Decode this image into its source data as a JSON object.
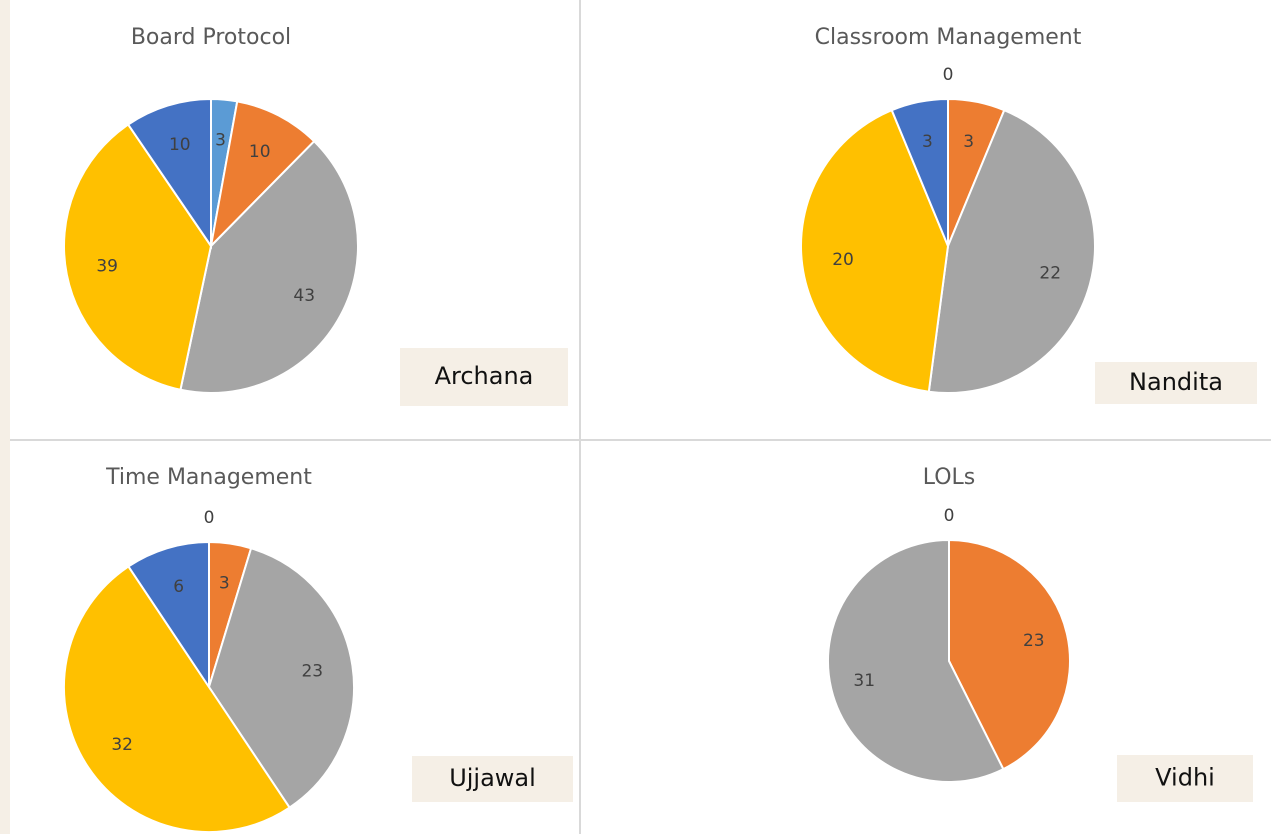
{
  "chart_data": [
    {
      "type": "pie",
      "title": "Board Protocol",
      "annotation": "Archana",
      "values": [
        3,
        10,
        43,
        39,
        10
      ],
      "colors": [
        "#5b9bd5",
        "#ed7d31",
        "#a5a5a5",
        "#ffc000",
        "#4472c4"
      ]
    },
    {
      "type": "pie",
      "title": "Classroom Management",
      "annotation": "Nandita",
      "values": [
        0,
        3,
        22,
        20,
        3
      ],
      "colors": [
        "#5b9bd5",
        "#ed7d31",
        "#a5a5a5",
        "#ffc000",
        "#4472c4"
      ]
    },
    {
      "type": "pie",
      "title": "Time Management",
      "annotation": "Ujjawal",
      "values": [
        0,
        3,
        23,
        32,
        6
      ],
      "colors": [
        "#5b9bd5",
        "#ed7d31",
        "#a5a5a5",
        "#ffc000",
        "#4472c4"
      ]
    },
    {
      "type": "pie",
      "title": "LOLs",
      "annotation": "Vidhi",
      "values": [
        0,
        23,
        31
      ],
      "colors": [
        "#5b9bd5",
        "#ed7d31",
        "#a5a5a5"
      ]
    }
  ]
}
